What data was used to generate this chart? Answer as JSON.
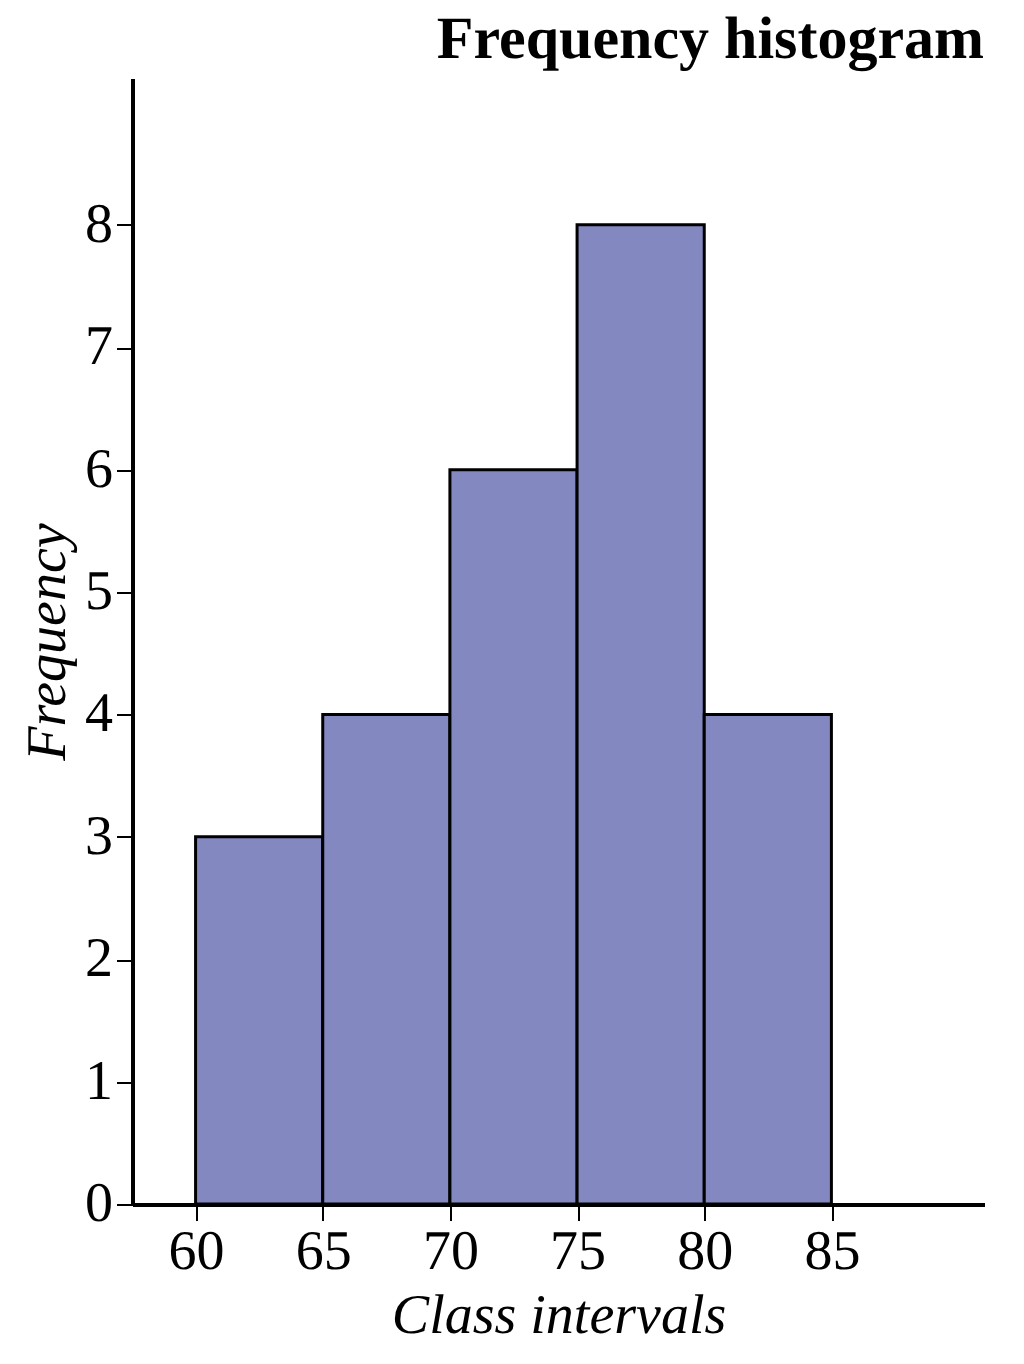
{
  "chart_data": {
    "type": "histogram",
    "title": "Frequency histogram",
    "xlabel": "Class intervals",
    "ylabel": "Frequency",
    "bins": [
      60,
      65,
      70,
      75,
      80,
      85
    ],
    "values": [
      3,
      4,
      6,
      8,
      4
    ],
    "color": "#8488c0",
    "xlim": [
      57.5,
      91
    ],
    "xticks": [
      60,
      65,
      70,
      75,
      80,
      85
    ],
    "ylim": [
      0,
      9.2
    ],
    "yticks": [
      0,
      1,
      2,
      3,
      4,
      5,
      6,
      7,
      8
    ],
    "grid": false
  }
}
